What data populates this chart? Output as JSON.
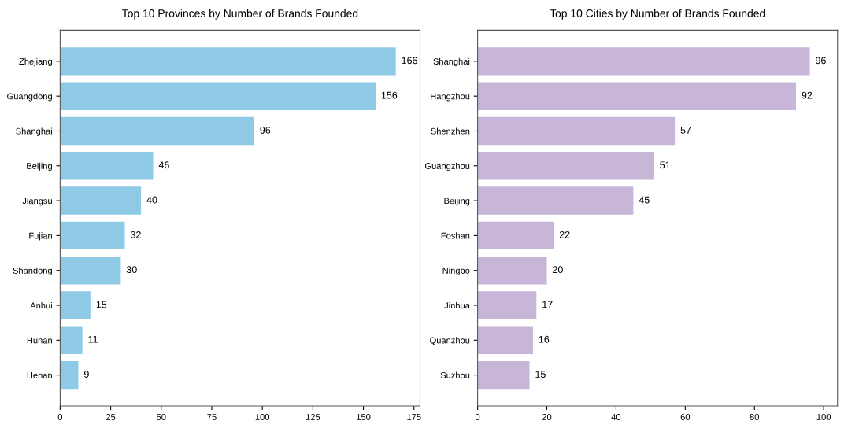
{
  "chart_data": [
    {
      "type": "bar",
      "orientation": "horizontal",
      "title": "Top 10 Provinces by Number of Brands Founded",
      "categories": [
        "Zhejiang",
        "Guangdong",
        "Shanghai",
        "Beijing",
        "Jiangsu",
        "Fujian",
        "Shandong",
        "Anhui",
        "Hunan",
        "Henan"
      ],
      "values": [
        166,
        156,
        96,
        46,
        40,
        32,
        30,
        15,
        11,
        9
      ],
      "color": "#8ecae6",
      "data_labels": true,
      "xlim": [
        0,
        178
      ],
      "xticks": [
        0,
        25,
        50,
        75,
        100,
        125,
        150,
        175
      ],
      "grid": false
    },
    {
      "type": "bar",
      "orientation": "horizontal",
      "title": "Top 10 Cities by Number of Brands Founded",
      "categories": [
        "Shanghai",
        "Hangzhou",
        "Shenzhen",
        "Guangzhou",
        "Beijing",
        "Foshan",
        "Ningbo",
        "Jinhua",
        "Quanzhou",
        "Suzhou"
      ],
      "values": [
        96,
        92,
        57,
        51,
        45,
        22,
        20,
        17,
        16,
        15
      ],
      "color": "#c8b6d9",
      "data_labels": true,
      "xlim": [
        0,
        104
      ],
      "xticks": [
        0,
        20,
        40,
        60,
        80,
        100
      ],
      "grid": false
    }
  ]
}
